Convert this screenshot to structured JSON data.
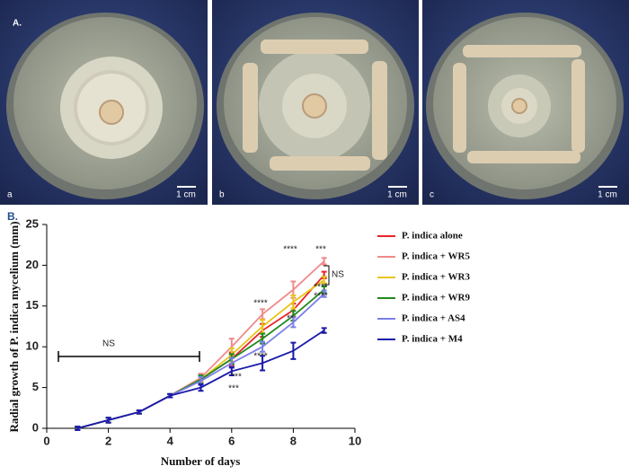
{
  "panel_a": {
    "label": "A.",
    "photos": [
      {
        "label": "a",
        "scale": "1 cm"
      },
      {
        "label": "b",
        "scale": "1 cm"
      },
      {
        "label": "c",
        "scale": "1 cm"
      }
    ]
  },
  "chart_data": {
    "type": "line",
    "panel_label": "B.",
    "y_label": "Radial growth of P. indica mycelium (mm)",
    "x_label": "Number of days",
    "x": [
      1,
      2,
      3,
      4,
      5,
      6,
      7,
      8,
      9
    ],
    "xlim": [
      0,
      10
    ],
    "xticks": [
      0,
      2,
      4,
      6,
      8,
      10
    ],
    "ylim": [
      0,
      25
    ],
    "yticks": [
      0,
      5,
      10,
      15,
      20,
      25
    ],
    "series": [
      {
        "name": "P. indica alone",
        "color": "#e8222a",
        "values": [
          0,
          1,
          2,
          4,
          6,
          8.5,
          12,
          14.5,
          18.8
        ],
        "errors": [
          0.2,
          0.3,
          0.2,
          0.2,
          0.6,
          0.8,
          0.8,
          0.8,
          0.4
        ]
      },
      {
        "name": "P. indica + WR5",
        "color": "#f08a8a",
        "values": [
          0,
          1,
          2,
          4,
          6.2,
          10,
          14,
          17,
          20.5
        ],
        "errors": [
          0.2,
          0.3,
          0.2,
          0.2,
          0.5,
          1,
          0.6,
          1,
          0.4
        ]
      },
      {
        "name": "P. indica + WR3",
        "color": "#e6c619",
        "values": [
          0,
          1,
          2,
          4,
          6,
          9,
          12.5,
          15.5,
          18.2
        ],
        "errors": [
          0.2,
          0.3,
          0.2,
          0.2,
          0.5,
          0.8,
          0.8,
          0.8,
          0.4
        ]
      },
      {
        "name": "P. indica + WR9",
        "color": "#1f8a1f",
        "values": [
          0,
          1,
          2,
          4,
          6,
          8.5,
          11,
          13.8,
          17
        ],
        "errors": [
          0.2,
          0.3,
          0.2,
          0.2,
          0.5,
          0.6,
          0.6,
          0.6,
          0.4
        ]
      },
      {
        "name": "P. indica + AS4",
        "color": "#7b7fe6",
        "values": [
          0,
          1,
          2,
          4,
          5.8,
          8,
          10,
          13,
          16.5
        ],
        "errors": [
          0.2,
          0.3,
          0.2,
          0.2,
          0.5,
          0.6,
          0.6,
          0.6,
          0.4
        ]
      },
      {
        "name": "P. indica + M4",
        "color": "#1a1aaa",
        "values": [
          0,
          1,
          2,
          4,
          5,
          7,
          8,
          9.5,
          12
        ],
        "errors": [
          0.2,
          0.3,
          0.2,
          0.2,
          0.4,
          0.5,
          0.9,
          1,
          0.3
        ]
      }
    ],
    "annotations": [
      "NS",
      "***",
      "****",
      "****",
      "****",
      "**",
      "****",
      "***",
      "****",
      "***",
      "NS"
    ]
  }
}
